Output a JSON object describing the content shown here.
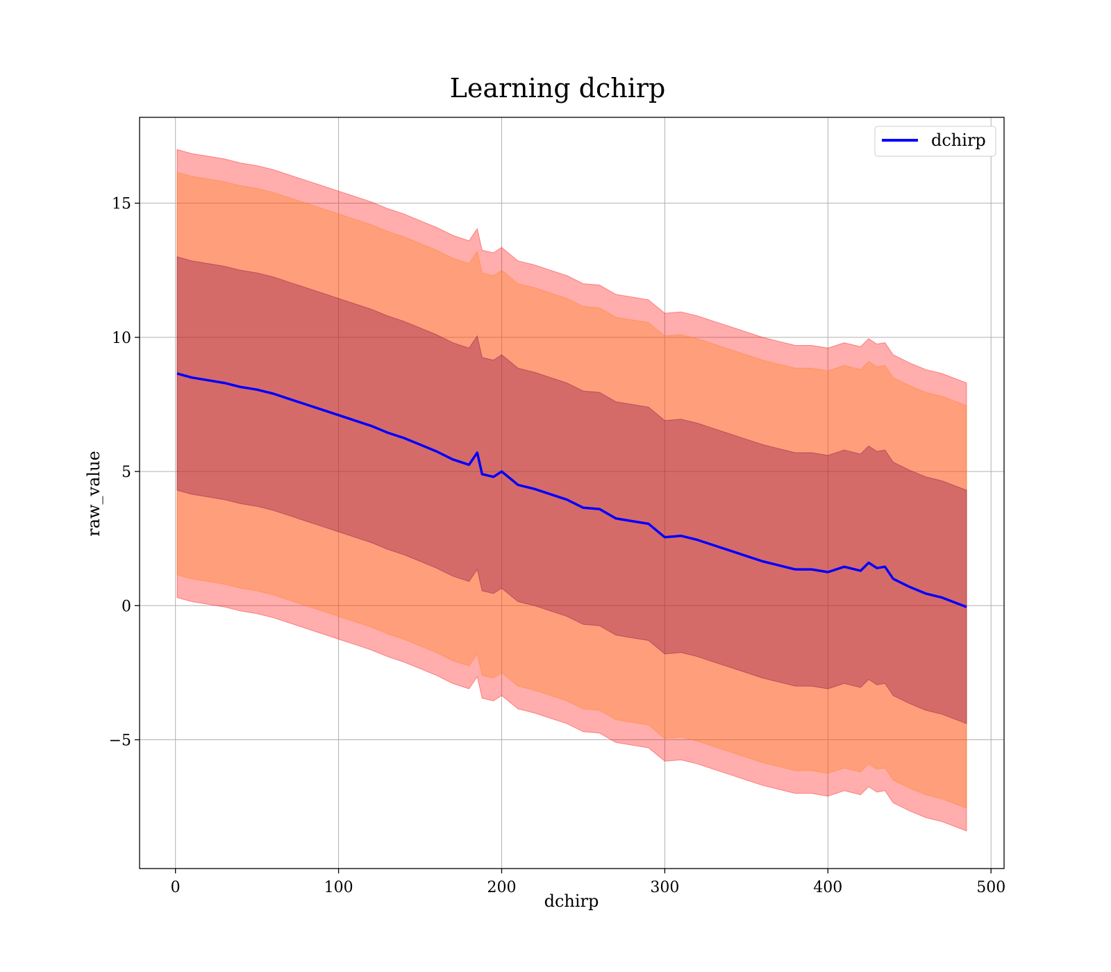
{
  "chart_data": {
    "type": "line",
    "title": "Learning dchirp",
    "xlabel": "dchirp",
    "ylabel": "raw_value",
    "xlim": [
      -22,
      508
    ],
    "ylim": [
      -9.8,
      18.2
    ],
    "xticks": [
      0,
      100,
      200,
      300,
      400,
      500
    ],
    "xtick_labels": [
      "0",
      "100",
      "200",
      "300",
      "400",
      "500"
    ],
    "yticks": [
      -5,
      0,
      5,
      10,
      15
    ],
    "ytick_labels": [
      "−5",
      "0",
      "5",
      "10",
      "15"
    ],
    "grid": true,
    "legend": {
      "position": "top-right",
      "entries": [
        "dchirp"
      ]
    },
    "colors": {
      "line": "#0000ff",
      "band3": "#ff0000",
      "band2": "#ff7f0e",
      "band1": "#7b0046",
      "grid": "#b0b0b0"
    },
    "series": [
      {
        "name": "dchirp",
        "x": [
          1,
          10,
          20,
          30,
          40,
          50,
          60,
          70,
          80,
          90,
          100,
          110,
          120,
          130,
          140,
          150,
          160,
          170,
          180,
          185,
          188,
          195,
          200,
          210,
          220,
          230,
          240,
          250,
          260,
          270,
          280,
          290,
          300,
          310,
          320,
          330,
          340,
          350,
          360,
          370,
          380,
          390,
          400,
          410,
          420,
          425,
          430,
          435,
          440,
          450,
          460,
          470,
          485
        ],
        "mean": [
          8.65,
          8.5,
          8.4,
          8.3,
          8.15,
          8.05,
          7.9,
          7.7,
          7.5,
          7.3,
          7.1,
          6.9,
          6.7,
          6.45,
          6.25,
          6.0,
          5.75,
          5.45,
          5.25,
          5.7,
          4.9,
          4.8,
          5.0,
          4.5,
          4.35,
          4.15,
          3.95,
          3.65,
          3.6,
          3.25,
          3.15,
          3.05,
          2.55,
          2.6,
          2.45,
          2.25,
          2.05,
          1.85,
          1.65,
          1.5,
          1.35,
          1.35,
          1.25,
          1.45,
          1.3,
          1.6,
          1.4,
          1.45,
          1.0,
          0.7,
          0.45,
          0.3,
          -0.05
        ],
        "band_halfwidths": [
          4.35,
          7.5,
          8.35
        ]
      }
    ]
  }
}
